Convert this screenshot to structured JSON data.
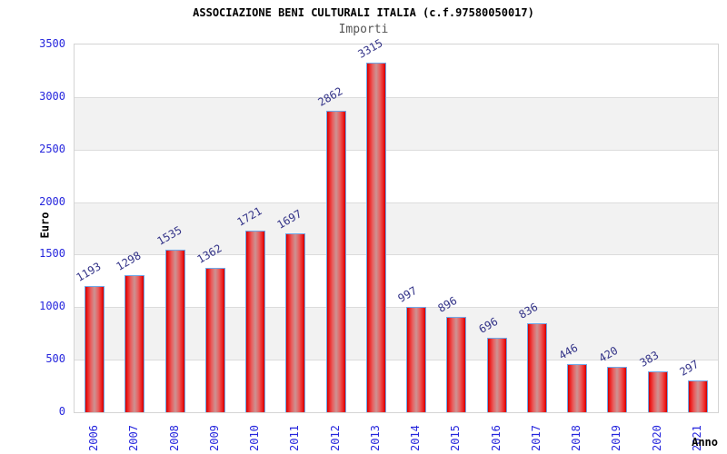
{
  "title": "ASSOCIAZIONE BENI CULTURALI ITALIA (c.f.97580050017)",
  "subtitle": "Importi",
  "chart_data": {
    "type": "bar",
    "title": "ASSOCIAZIONE BENI CULTURALI ITALIA (c.f.97580050017)",
    "subtitle": "Importi",
    "xlabel": "Anno",
    "ylabel": "Euro",
    "categories": [
      "2006",
      "2007",
      "2008",
      "2009",
      "2010",
      "2011",
      "2012",
      "2013",
      "2014",
      "2015",
      "2016",
      "2017",
      "2018",
      "2019",
      "2020",
      "2021"
    ],
    "values": [
      1193,
      1298,
      1535,
      1362,
      1721,
      1697,
      2862,
      3315,
      997,
      896,
      696,
      836,
      446,
      420,
      383,
      297
    ],
    "ylim": [
      0,
      3500
    ],
    "yticks": [
      0,
      500,
      1000,
      1500,
      2000,
      2500,
      3000,
      3500
    ],
    "grid": "horizontal-bands-alternating",
    "legend": "none"
  },
  "colors": {
    "bar_fill_edge": "#c80000",
    "bar_fill_bright": "#ee1c1c",
    "bar_fill_center": "#cc9393",
    "bar_border": "#6fa8e8",
    "axis_tick_label": "#2626dd",
    "value_label": "#333388",
    "band": "#f2f2f2",
    "gridline": "#dcdcdc",
    "plot_border": "#d4d4d4",
    "subtitle_text": "#555555",
    "title_text": "#000000"
  }
}
